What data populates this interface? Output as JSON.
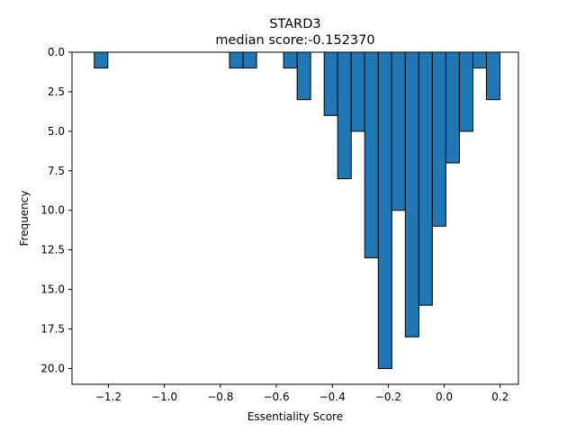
{
  "chart_data": {
    "type": "bar",
    "title": "STARD3",
    "subtitle": "median score:-0.152370",
    "xlabel": "Essentiality Score",
    "ylabel": "Frequency",
    "y_inverted": true,
    "xlim": [
      -1.33,
      0.265
    ],
    "ylim": [
      0,
      21
    ],
    "xticks": [
      -1.2,
      -1.0,
      -0.8,
      -0.6,
      -0.4,
      -0.2,
      0.0,
      0.2
    ],
    "xtick_labels": [
      "−1.2",
      "−1.0",
      "−0.8",
      "−0.6",
      "−0.4",
      "−0.2",
      "0.0",
      "0.2"
    ],
    "yticks": [
      0.0,
      2.5,
      5.0,
      7.5,
      10.0,
      12.5,
      15.0,
      17.5,
      20.0
    ],
    "ytick_labels": [
      "0.0",
      "2.5",
      "5.0",
      "7.5",
      "10.0",
      "12.5",
      "15.0",
      "17.5",
      "20.0"
    ],
    "bar_color": "#1f77b4",
    "edge_color": "#000000",
    "bin_width": 0.0483,
    "bins": [
      {
        "x": -1.2503,
        "count": 1
      },
      {
        "x": -0.7672,
        "count": 1
      },
      {
        "x": -0.7189,
        "count": 1
      },
      {
        "x": -0.5739,
        "count": 1
      },
      {
        "x": -0.5256,
        "count": 3
      },
      {
        "x": -0.429,
        "count": 4
      },
      {
        "x": -0.3807,
        "count": 8
      },
      {
        "x": -0.3324,
        "count": 5
      },
      {
        "x": -0.284,
        "count": 13
      },
      {
        "x": -0.2357,
        "count": 20
      },
      {
        "x": -0.1874,
        "count": 10
      },
      {
        "x": -0.1391,
        "count": 18
      },
      {
        "x": -0.0908,
        "count": 16
      },
      {
        "x": -0.0425,
        "count": 11
      },
      {
        "x": 0.0058,
        "count": 7
      },
      {
        "x": 0.0541,
        "count": 5
      },
      {
        "x": 0.1025,
        "count": 1
      },
      {
        "x": 0.1508,
        "count": 3
      }
    ]
  }
}
